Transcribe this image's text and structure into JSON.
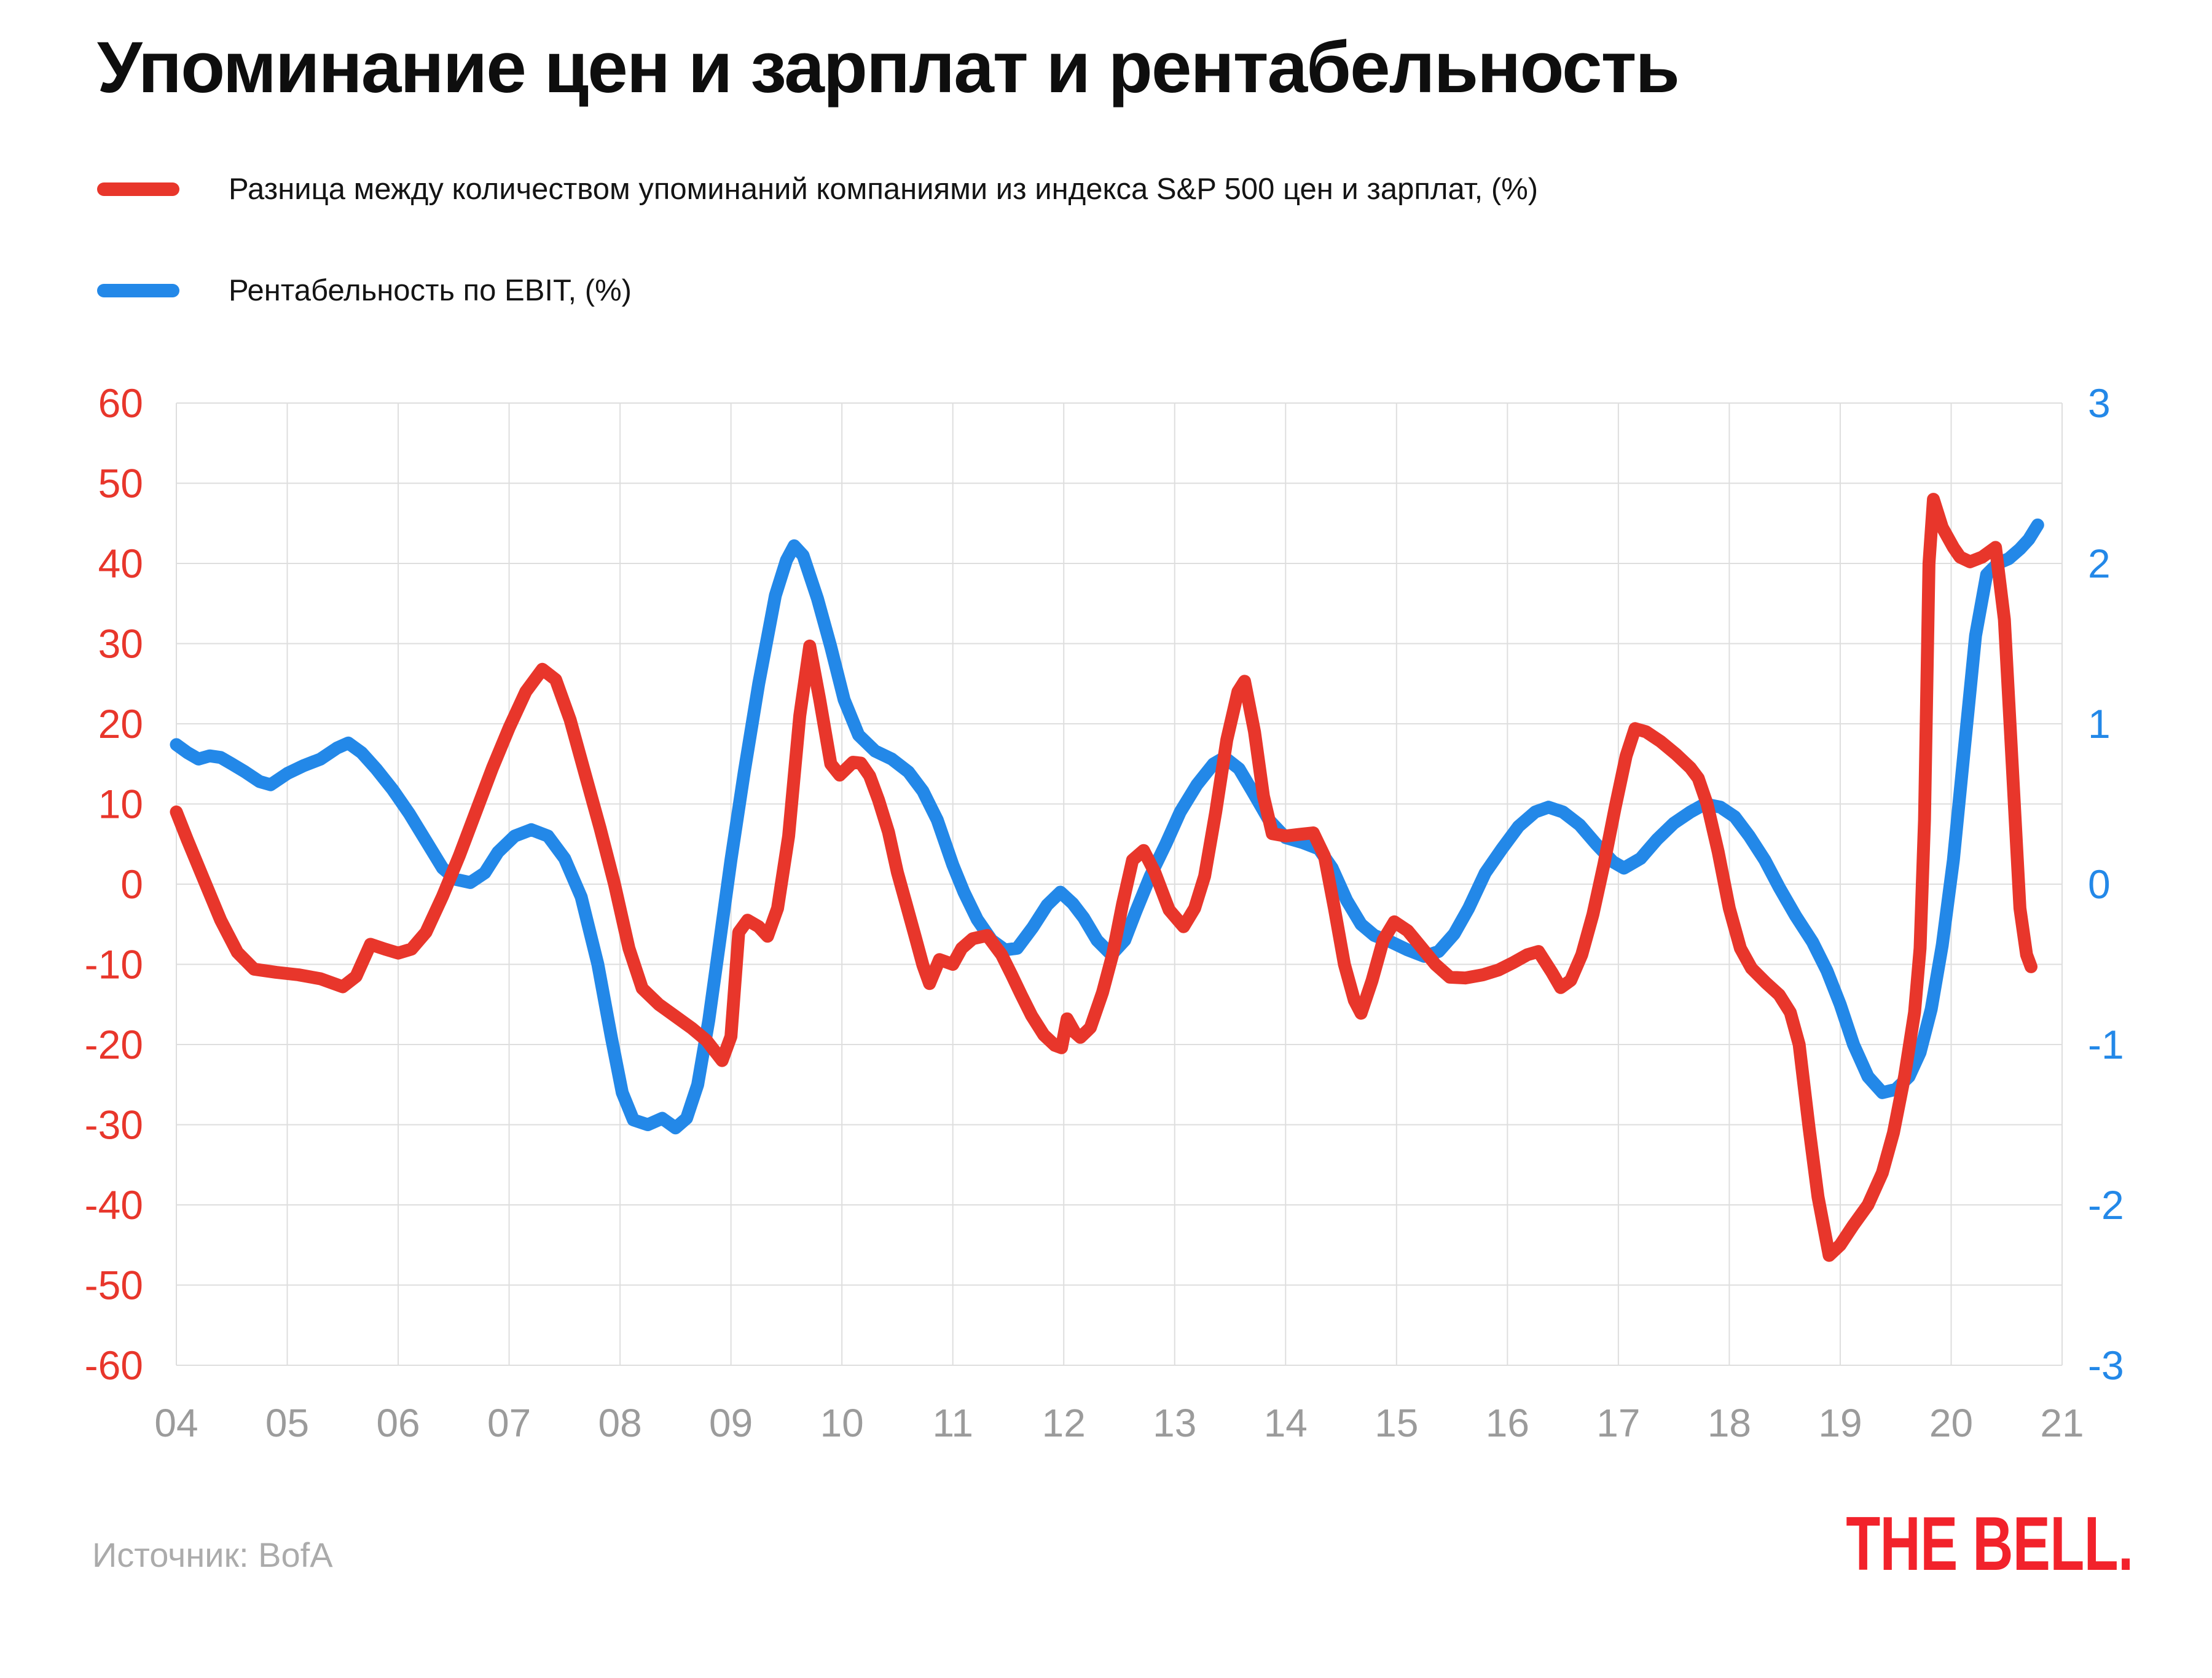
{
  "header": {
    "title": "Упоминание цен и зарплат и рентабельность"
  },
  "footer": {
    "source_label": "Источник: BofA",
    "logo_text": "THE BELL."
  },
  "chart_data": {
    "type": "line",
    "title": "Упоминание цен и зарплат и рентабельность",
    "grid": true,
    "grid_color": "#dedede",
    "background_color": "#ffffff",
    "legend_position": "top-left",
    "x": {
      "min": 4,
      "max": 21,
      "tick_labels": [
        "04",
        "05",
        "06",
        "07",
        "08",
        "09",
        "10",
        "11",
        "12",
        "13",
        "14",
        "15",
        "16",
        "17",
        "18",
        "19",
        "20",
        "21"
      ],
      "tick_color": "#9b9b9b"
    },
    "y_left": {
      "min": -60,
      "max": 60,
      "ticks": [
        60,
        50,
        40,
        30,
        20,
        10,
        0,
        -10,
        -20,
        -30,
        -40,
        -50,
        -60
      ],
      "tick_color": "#e8362b"
    },
    "y_right": {
      "min": -3,
      "max": 3,
      "ticks": [
        3,
        2,
        1,
        0,
        -1,
        -2,
        -3
      ],
      "tick_color": "#2388e8"
    },
    "series": [
      {
        "name": "Разница между количеством упоминаний компаниями из индекса S&P 500 цен и зарплат, (%)",
        "axis": "left",
        "color": "#e8362b",
        "points": [
          [
            4.0,
            9
          ],
          [
            4.1,
            5.5
          ],
          [
            4.25,
            0.5
          ],
          [
            4.4,
            -4.5
          ],
          [
            4.55,
            -8.5
          ],
          [
            4.7,
            -10.6
          ],
          [
            4.9,
            -11
          ],
          [
            5.1,
            -11.3
          ],
          [
            5.3,
            -11.8
          ],
          [
            5.5,
            -12.8
          ],
          [
            5.62,
            -11.5
          ],
          [
            5.75,
            -7.5
          ],
          [
            5.88,
            -8.1
          ],
          [
            6.0,
            -8.6
          ],
          [
            6.12,
            -8.1
          ],
          [
            6.25,
            -6
          ],
          [
            6.4,
            -1.5
          ],
          [
            6.55,
            3.5
          ],
          [
            6.7,
            9
          ],
          [
            6.85,
            14.5
          ],
          [
            7.0,
            19.5
          ],
          [
            7.15,
            24
          ],
          [
            7.3,
            26.8
          ],
          [
            7.42,
            25.5
          ],
          [
            7.55,
            20.5
          ],
          [
            7.68,
            14
          ],
          [
            7.82,
            7
          ],
          [
            7.95,
            0
          ],
          [
            8.08,
            -8
          ],
          [
            8.2,
            -13
          ],
          [
            8.35,
            -15
          ],
          [
            8.5,
            -16.5
          ],
          [
            8.65,
            -18
          ],
          [
            8.78,
            -19.5
          ],
          [
            8.92,
            -22
          ],
          [
            9.0,
            -19
          ],
          [
            9.07,
            -6
          ],
          [
            9.15,
            -4.5
          ],
          [
            9.25,
            -5.3
          ],
          [
            9.33,
            -6.5
          ],
          [
            9.42,
            -3
          ],
          [
            9.52,
            6
          ],
          [
            9.62,
            21
          ],
          [
            9.71,
            29.7
          ],
          [
            9.8,
            23
          ],
          [
            9.9,
            15
          ],
          [
            9.98,
            13.6
          ],
          [
            10.1,
            15.2
          ],
          [
            10.17,
            15.1
          ],
          [
            10.25,
            13.5
          ],
          [
            10.33,
            10.5
          ],
          [
            10.42,
            6.5
          ],
          [
            10.5,
            1.5
          ],
          [
            10.58,
            -2.5
          ],
          [
            10.66,
            -6.5
          ],
          [
            10.73,
            -10.1
          ],
          [
            10.79,
            -12.4
          ],
          [
            10.88,
            -9.4
          ],
          [
            11.0,
            -10
          ],
          [
            11.08,
            -8
          ],
          [
            11.18,
            -6.8
          ],
          [
            11.31,
            -6.4
          ],
          [
            11.44,
            -8.8
          ],
          [
            11.53,
            -11.3
          ],
          [
            11.62,
            -13.9
          ],
          [
            11.71,
            -16.4
          ],
          [
            11.82,
            -18.8
          ],
          [
            11.92,
            -20.1
          ],
          [
            11.98,
            -20.4
          ],
          [
            12.03,
            -16.8
          ],
          [
            12.1,
            -18.5
          ],
          [
            12.15,
            -19.1
          ],
          [
            12.24,
            -17.9
          ],
          [
            12.35,
            -13.5
          ],
          [
            12.44,
            -8.8
          ],
          [
            12.53,
            -2.5
          ],
          [
            12.62,
            3
          ],
          [
            12.72,
            4.2
          ],
          [
            12.82,
            1.5
          ],
          [
            12.95,
            -3.2
          ],
          [
            13.08,
            -5.3
          ],
          [
            13.18,
            -3
          ],
          [
            13.27,
            1
          ],
          [
            13.37,
            9
          ],
          [
            13.47,
            18
          ],
          [
            13.57,
            24
          ],
          [
            13.63,
            25.3
          ],
          [
            13.72,
            19
          ],
          [
            13.8,
            11
          ],
          [
            13.88,
            6.3
          ],
          [
            14.0,
            6
          ],
          [
            14.12,
            6.2
          ],
          [
            14.25,
            6.4
          ],
          [
            14.35,
            3.5
          ],
          [
            14.44,
            -3
          ],
          [
            14.53,
            -10
          ],
          [
            14.62,
            -14.5
          ],
          [
            14.68,
            -16.1
          ],
          [
            14.78,
            -12
          ],
          [
            14.88,
            -7
          ],
          [
            14.98,
            -4.7
          ],
          [
            15.1,
            -5.8
          ],
          [
            15.22,
            -7.8
          ],
          [
            15.35,
            -10
          ],
          [
            15.48,
            -11.6
          ],
          [
            15.62,
            -11.7
          ],
          [
            15.78,
            -11.3
          ],
          [
            15.92,
            -10.7
          ],
          [
            16.05,
            -9.8
          ],
          [
            16.18,
            -8.8
          ],
          [
            16.28,
            -8.4
          ],
          [
            16.4,
            -11
          ],
          [
            16.48,
            -12.9
          ],
          [
            16.57,
            -12
          ],
          [
            16.67,
            -8.8
          ],
          [
            16.77,
            -3.8
          ],
          [
            16.87,
            2.5
          ],
          [
            16.97,
            9.5
          ],
          [
            17.07,
            16
          ],
          [
            17.15,
            19.4
          ],
          [
            17.25,
            19
          ],
          [
            17.38,
            17.8
          ],
          [
            17.52,
            16.2
          ],
          [
            17.65,
            14.5
          ],
          [
            17.72,
            13.2
          ],
          [
            17.8,
            10
          ],
          [
            17.9,
            4
          ],
          [
            18.0,
            -3
          ],
          [
            18.1,
            -8
          ],
          [
            18.2,
            -10.5
          ],
          [
            18.33,
            -12.3
          ],
          [
            18.45,
            -13.8
          ],
          [
            18.55,
            -16
          ],
          [
            18.63,
            -20
          ],
          [
            18.72,
            -30.5
          ],
          [
            18.8,
            -39
          ],
          [
            18.9,
            -46.3
          ],
          [
            19.0,
            -45
          ],
          [
            19.12,
            -42.5
          ],
          [
            19.25,
            -40
          ],
          [
            19.38,
            -36
          ],
          [
            19.48,
            -31
          ],
          [
            19.58,
            -24
          ],
          [
            19.67,
            -16
          ],
          [
            19.72,
            -8
          ],
          [
            19.76,
            8
          ],
          [
            19.8,
            40
          ],
          [
            19.84,
            48
          ],
          [
            19.92,
            44.5
          ],
          [
            20.02,
            42
          ],
          [
            20.08,
            40.8
          ],
          [
            20.17,
            40.2
          ],
          [
            20.28,
            40.8
          ],
          [
            20.4,
            42
          ],
          [
            20.48,
            33
          ],
          [
            20.55,
            15
          ],
          [
            20.62,
            -3
          ],
          [
            20.68,
            -8.8
          ],
          [
            20.72,
            -10.3
          ]
        ]
      },
      {
        "name": "Рентабельность по EBIT, (%)",
        "axis": "right",
        "color": "#2388e8",
        "points": [
          [
            4.0,
            0.87
          ],
          [
            4.1,
            0.82
          ],
          [
            4.2,
            0.78
          ],
          [
            4.3,
            0.8
          ],
          [
            4.4,
            0.79
          ],
          [
            4.5,
            0.75
          ],
          [
            4.62,
            0.7
          ],
          [
            4.75,
            0.64
          ],
          [
            4.85,
            0.62
          ],
          [
            5.0,
            0.69
          ],
          [
            5.15,
            0.74
          ],
          [
            5.3,
            0.78
          ],
          [
            5.45,
            0.85
          ],
          [
            5.55,
            0.88
          ],
          [
            5.67,
            0.82
          ],
          [
            5.8,
            0.72
          ],
          [
            5.95,
            0.59
          ],
          [
            6.1,
            0.44
          ],
          [
            6.25,
            0.27
          ],
          [
            6.4,
            0.1
          ],
          [
            6.52,
            0.03
          ],
          [
            6.65,
            0.01
          ],
          [
            6.78,
            0.07
          ],
          [
            6.9,
            0.2
          ],
          [
            7.05,
            0.3
          ],
          [
            7.2,
            0.34
          ],
          [
            7.35,
            0.3
          ],
          [
            7.5,
            0.16
          ],
          [
            7.65,
            -0.08
          ],
          [
            7.8,
            -0.5
          ],
          [
            7.92,
            -0.95
          ],
          [
            8.02,
            -1.3
          ],
          [
            8.12,
            -1.47
          ],
          [
            8.25,
            -1.5
          ],
          [
            8.38,
            -1.46
          ],
          [
            8.5,
            -1.52
          ],
          [
            8.6,
            -1.46
          ],
          [
            8.7,
            -1.25
          ],
          [
            8.8,
            -0.85
          ],
          [
            8.9,
            -0.35
          ],
          [
            9.0,
            0.15
          ],
          [
            9.12,
            0.7
          ],
          [
            9.25,
            1.25
          ],
          [
            9.4,
            1.8
          ],
          [
            9.5,
            2.02
          ],
          [
            9.57,
            2.11
          ],
          [
            9.65,
            2.05
          ],
          [
            9.78,
            1.78
          ],
          [
            9.9,
            1.48
          ],
          [
            10.02,
            1.15
          ],
          [
            10.15,
            0.93
          ],
          [
            10.3,
            0.83
          ],
          [
            10.45,
            0.78
          ],
          [
            10.6,
            0.7
          ],
          [
            10.73,
            0.58
          ],
          [
            10.86,
            0.4
          ],
          [
            11.0,
            0.12
          ],
          [
            11.1,
            -0.05
          ],
          [
            11.22,
            -0.22
          ],
          [
            11.35,
            -0.35
          ],
          [
            11.47,
            -0.41
          ],
          [
            11.58,
            -0.4
          ],
          [
            11.72,
            -0.27
          ],
          [
            11.85,
            -0.13
          ],
          [
            11.97,
            -0.05
          ],
          [
            12.08,
            -0.12
          ],
          [
            12.18,
            -0.21
          ],
          [
            12.3,
            -0.35
          ],
          [
            12.43,
            -0.44
          ],
          [
            12.55,
            -0.35
          ],
          [
            12.65,
            -0.17
          ],
          [
            12.78,
            0.05
          ],
          [
            12.92,
            0.25
          ],
          [
            13.05,
            0.45
          ],
          [
            13.2,
            0.62
          ],
          [
            13.35,
            0.75
          ],
          [
            13.45,
            0.79
          ],
          [
            13.58,
            0.72
          ],
          [
            13.7,
            0.58
          ],
          [
            13.85,
            0.4
          ],
          [
            14.0,
            0.29
          ],
          [
            14.15,
            0.26
          ],
          [
            14.3,
            0.22
          ],
          [
            14.42,
            0.1
          ],
          [
            14.55,
            -0.1
          ],
          [
            14.68,
            -0.25
          ],
          [
            14.8,
            -0.32
          ],
          [
            14.95,
            -0.36
          ],
          [
            15.1,
            -0.41
          ],
          [
            15.25,
            -0.45
          ],
          [
            15.38,
            -0.42
          ],
          [
            15.52,
            -0.31
          ],
          [
            15.65,
            -0.15
          ],
          [
            15.8,
            0.07
          ],
          [
            15.95,
            0.22
          ],
          [
            16.1,
            0.36
          ],
          [
            16.25,
            0.45
          ],
          [
            16.37,
            0.48
          ],
          [
            16.5,
            0.45
          ],
          [
            16.65,
            0.37
          ],
          [
            16.8,
            0.25
          ],
          [
            16.95,
            0.14
          ],
          [
            17.05,
            0.1
          ],
          [
            17.2,
            0.16
          ],
          [
            17.35,
            0.28
          ],
          [
            17.5,
            0.38
          ],
          [
            17.65,
            0.45
          ],
          [
            17.78,
            0.5
          ],
          [
            17.92,
            0.48
          ],
          [
            18.05,
            0.42
          ],
          [
            18.18,
            0.3
          ],
          [
            18.32,
            0.15
          ],
          [
            18.45,
            -0.02
          ],
          [
            18.6,
            -0.2
          ],
          [
            18.75,
            -0.36
          ],
          [
            18.88,
            -0.54
          ],
          [
            19.0,
            -0.75
          ],
          [
            19.12,
            -1.0
          ],
          [
            19.25,
            -1.2
          ],
          [
            19.38,
            -1.3
          ],
          [
            19.5,
            -1.28
          ],
          [
            19.62,
            -1.2
          ],
          [
            19.72,
            -1.05
          ],
          [
            19.82,
            -0.78
          ],
          [
            19.92,
            -0.38
          ],
          [
            20.02,
            0.15
          ],
          [
            20.12,
            0.85
          ],
          [
            20.22,
            1.55
          ],
          [
            20.32,
            1.93
          ],
          [
            20.42,
            2.0
          ],
          [
            20.52,
            2.03
          ],
          [
            20.62,
            2.09
          ],
          [
            20.7,
            2.15
          ],
          [
            20.78,
            2.24
          ]
        ]
      }
    ]
  }
}
